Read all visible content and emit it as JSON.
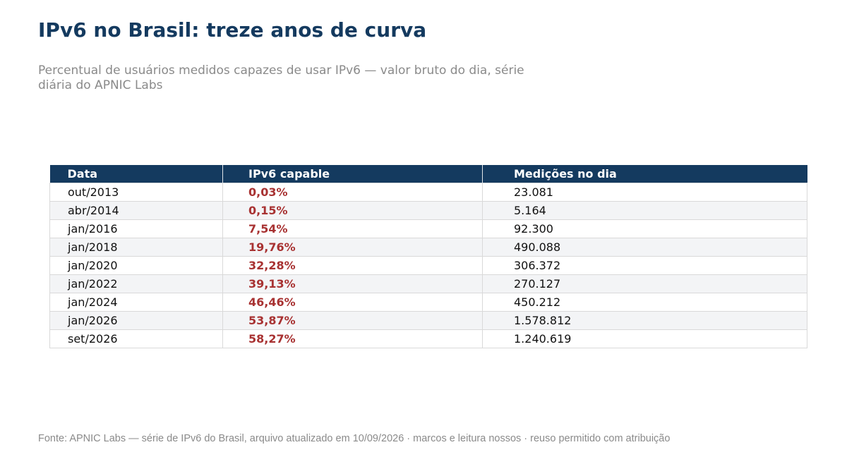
{
  "title": "IPv6 no Brasil: treze anos de curva",
  "subtitle": "Percentual de usuários medidos capazes de usar IPv6 — valor bruto do dia, série diária do APNIC Labs",
  "footer": "Fonte: APNIC Labs — série de IPv6 do Brasil, arquivo atualizado em 10/09/2026 · marcos e leitura nossos · reuso permitido com atribuição",
  "colors": {
    "header_bg": "#143a5f",
    "title": "#143a5f",
    "percent_value": "#a83232",
    "muted_text": "#8a8a8a",
    "stripe": "#f3f4f6"
  },
  "chart_data": {
    "type": "table",
    "columns": [
      "Data",
      "IPv6 capable",
      "Medições no dia"
    ],
    "rows": [
      [
        "out/2013",
        "0,03%",
        "23.081"
      ],
      [
        "abr/2014",
        "0,15%",
        "5.164"
      ],
      [
        "jan/2016",
        "7,54%",
        "92.300"
      ],
      [
        "jan/2018",
        "19,76%",
        "490.088"
      ],
      [
        "jan/2020",
        "32,28%",
        "306.372"
      ],
      [
        "jan/2022",
        "39,13%",
        "270.127"
      ],
      [
        "jan/2024",
        "46,46%",
        "450.212"
      ],
      [
        "jan/2026",
        "53,87%",
        "1.578.812"
      ],
      [
        "set/2026",
        "58,27%",
        "1.240.619"
      ]
    ]
  }
}
